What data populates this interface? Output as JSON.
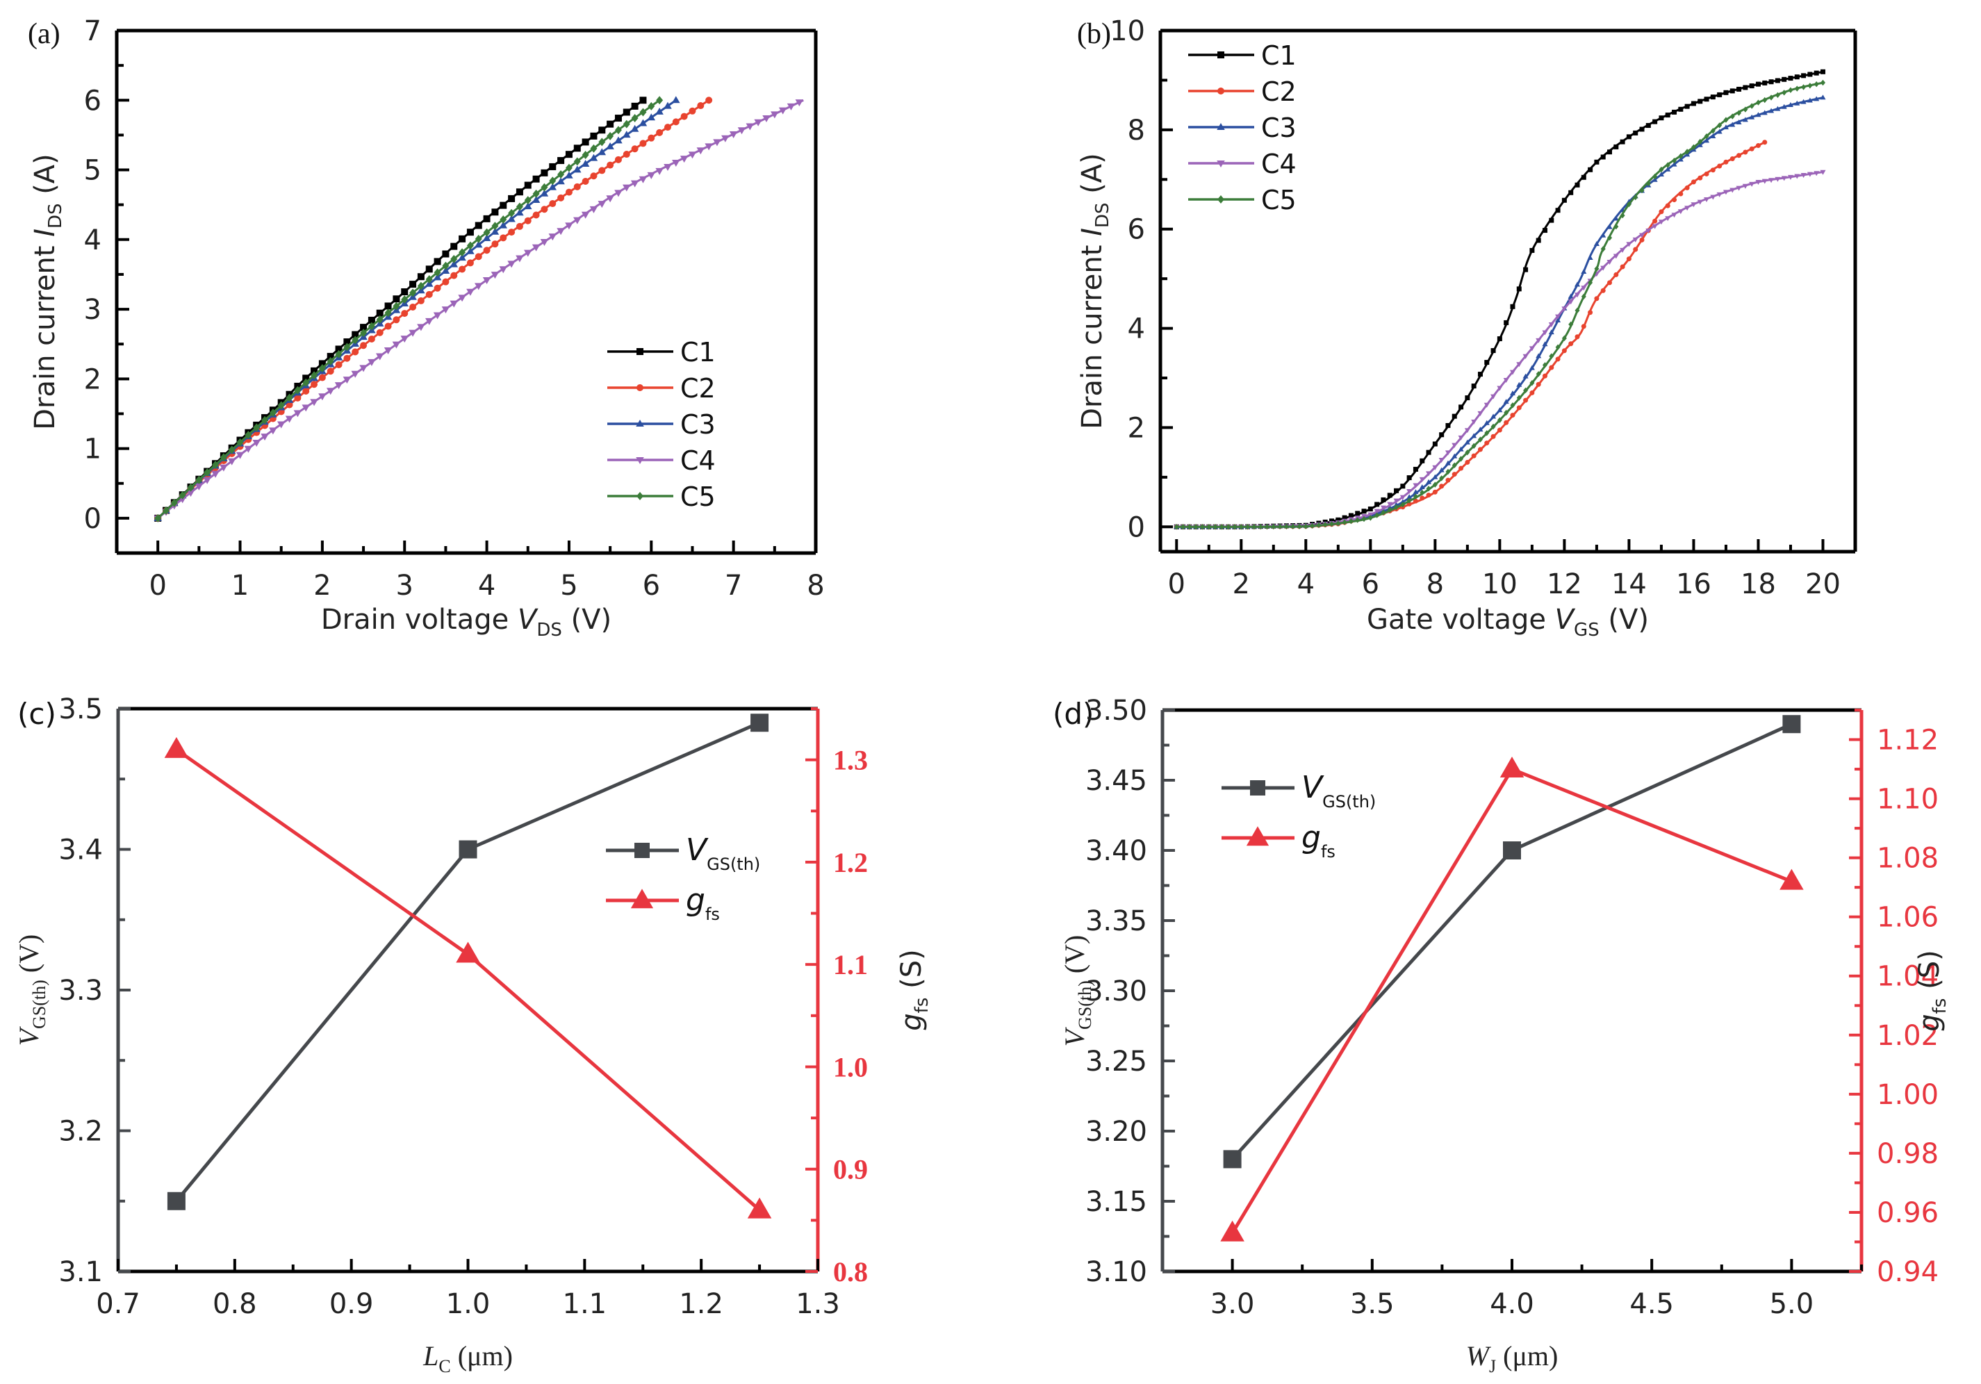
{
  "figure": {
    "panels": [
      "(a)",
      "(b)",
      "(c)",
      "(d)"
    ]
  },
  "chart_data": [
    {
      "id": "a",
      "panel_label": "(a)",
      "type": "line",
      "title": "",
      "xlabel": {
        "main": "Drain voltage ",
        "var": "V",
        "sub": "DS",
        "unit": " (V)"
      },
      "ylabel": {
        "main": "Drain current ",
        "var": "I",
        "sub": "DS",
        "unit": " (A)"
      },
      "xlim": [
        -0.5,
        8
      ],
      "ylim": [
        -0.5,
        7
      ],
      "xticks": [
        0,
        1,
        2,
        3,
        4,
        5,
        6,
        7,
        8
      ],
      "yticks": [
        0,
        1,
        2,
        3,
        4,
        5,
        6,
        7
      ],
      "x_minor_step": 0.5,
      "y_minor_step": 0.5,
      "grid": false,
      "legend_position": "bottom-right",
      "series": [
        {
          "name": "C1",
          "color": "#000000",
          "marker": "square",
          "x": [
            0,
            0.5,
            1.0,
            1.5,
            1.79,
            2.5,
            3.0,
            3.69,
            4.5,
            5.2,
            5.9
          ],
          "y": [
            0,
            0.56,
            1.12,
            1.66,
            2.0,
            2.74,
            3.25,
            4.0,
            4.78,
            5.4,
            6.0
          ]
        },
        {
          "name": "C2",
          "color": "#e8432e",
          "marker": "circle",
          "x": [
            0,
            0.5,
            1.0,
            1.5,
            1.98,
            2.5,
            3.0,
            4.17,
            5.0,
            5.9,
            6.7
          ],
          "y": [
            0,
            0.52,
            1.03,
            1.53,
            2.0,
            2.48,
            2.94,
            4.0,
            4.68,
            5.38,
            6.0
          ]
        },
        {
          "name": "C3",
          "color": "#2b4fa0",
          "marker": "triangle-up",
          "x": [
            0,
            0.5,
            1.0,
            1.5,
            1.89,
            2.5,
            3.0,
            3.98,
            4.8,
            5.6,
            6.3
          ],
          "y": [
            0,
            0.54,
            1.07,
            1.59,
            2.0,
            2.6,
            3.08,
            4.0,
            4.75,
            5.42,
            6.0
          ]
        },
        {
          "name": "C4",
          "color": "#9b64b8",
          "marker": "triangle-down",
          "x": [
            0,
            0.5,
            1.0,
            1.5,
            2.31,
            3.0,
            4.0,
            4.74,
            5.7,
            6.8,
            7.85
          ],
          "y": [
            0,
            0.46,
            0.91,
            1.35,
            2.0,
            2.58,
            3.42,
            4.0,
            4.75,
            5.4,
            6.0
          ]
        },
        {
          "name": "C5",
          "color": "#3c7d3a",
          "marker": "diamond",
          "x": [
            0,
            0.5,
            1.0,
            1.5,
            1.85,
            2.5,
            3.0,
            3.89,
            4.7,
            5.4,
            6.1
          ],
          "y": [
            0,
            0.55,
            1.09,
            1.62,
            2.0,
            2.66,
            3.14,
            4.0,
            4.75,
            5.4,
            6.0
          ]
        }
      ]
    },
    {
      "id": "b",
      "panel_label": "(b)",
      "type": "line",
      "title": "",
      "xlabel": {
        "main": "Gate voltage ",
        "var": "V",
        "sub": "GS",
        "unit": " (V)"
      },
      "ylabel": {
        "main": "Drain current ",
        "var": "I",
        "sub": "DS",
        "unit": " (A)"
      },
      "xlim": [
        -0.5,
        21
      ],
      "ylim": [
        -0.5,
        10
      ],
      "xticks": [
        0,
        2,
        4,
        6,
        8,
        10,
        12,
        14,
        16,
        18,
        20
      ],
      "yticks": [
        0,
        2,
        4,
        6,
        8,
        10
      ],
      "x_minor_step": 1,
      "y_minor_step": 1,
      "grid": false,
      "legend_position": "top-left",
      "series": [
        {
          "name": "C1",
          "color": "#000000",
          "marker": "square",
          "x": [
            0,
            2,
            4,
            5,
            6,
            7,
            8,
            9,
            10,
            10.5,
            11,
            12,
            13,
            14,
            15,
            16,
            17,
            18,
            19,
            20
          ],
          "y": [
            0,
            0,
            0.03,
            0.14,
            0.36,
            0.82,
            1.67,
            2.6,
            3.79,
            4.6,
            5.57,
            6.58,
            7.35,
            7.86,
            8.24,
            8.53,
            8.75,
            8.92,
            9.04,
            9.17
          ]
        },
        {
          "name": "C2",
          "color": "#e8432e",
          "marker": "circle",
          "x": [
            0,
            2,
            4,
            5,
            6,
            7,
            8,
            9,
            10,
            11,
            12,
            12.5,
            13,
            14,
            15,
            16,
            17,
            18.2
          ],
          "y": [
            0,
            0,
            0.01,
            0.06,
            0.2,
            0.4,
            0.7,
            1.3,
            1.95,
            2.7,
            3.55,
            3.9,
            4.6,
            5.4,
            6.35,
            6.95,
            7.35,
            7.75
          ]
        },
        {
          "name": "C3",
          "color": "#2b4fa0",
          "marker": "triangle-up",
          "x": [
            0,
            2,
            4,
            5,
            6,
            7,
            8,
            9,
            10,
            11,
            12,
            12.5,
            13,
            14,
            15,
            16,
            17,
            18,
            19,
            20
          ],
          "y": [
            0,
            0,
            0.02,
            0.08,
            0.22,
            0.5,
            1.0,
            1.7,
            2.35,
            3.2,
            4.4,
            5.0,
            5.7,
            6.55,
            7.1,
            7.6,
            8.05,
            8.3,
            8.5,
            8.65
          ]
        },
        {
          "name": "C4",
          "color": "#9b64b8",
          "marker": "triangle-down",
          "x": [
            0,
            2,
            4,
            5,
            6,
            7,
            8,
            9,
            10,
            11,
            12,
            13,
            14,
            15,
            16,
            17,
            18,
            19,
            20
          ],
          "y": [
            0,
            0,
            0.02,
            0.09,
            0.25,
            0.6,
            1.2,
            1.95,
            2.8,
            3.6,
            4.4,
            5.1,
            5.7,
            6.15,
            6.5,
            6.75,
            6.95,
            7.05,
            7.15
          ]
        },
        {
          "name": "C5",
          "color": "#3c7d3a",
          "marker": "diamond",
          "x": [
            0,
            2,
            4,
            5,
            6,
            7,
            8,
            9,
            10,
            11,
            12,
            12.5,
            13,
            13.2,
            14,
            15,
            16,
            17,
            18,
            19,
            20
          ],
          "y": [
            0,
            0,
            0.01,
            0.07,
            0.18,
            0.45,
            0.85,
            1.5,
            2.15,
            2.9,
            3.8,
            4.5,
            5.2,
            5.6,
            6.5,
            7.2,
            7.65,
            8.2,
            8.55,
            8.8,
            8.95
          ]
        }
      ]
    },
    {
      "id": "c",
      "panel_label": "(c)",
      "type": "line",
      "title": "",
      "xlabel": {
        "main": "",
        "var": "L",
        "sub": "C",
        "unit": " (μm)"
      },
      "ylabel": {
        "main": "",
        "var": "V",
        "sub": "GS(th)",
        "unit": " (V)"
      },
      "y2label": {
        "main": "",
        "var": "g",
        "sub": "fs",
        "unit": " (S)"
      },
      "xlim": [
        0.7,
        1.3
      ],
      "ylim": [
        3.1,
        3.5
      ],
      "y2lim": [
        0.8,
        1.35
      ],
      "xticks": [
        0.7,
        0.8,
        0.9,
        1.0,
        1.1,
        1.2,
        1.3
      ],
      "xtick_labels": [
        "0.7",
        "0.8",
        "0.9",
        "1.0",
        "1.1",
        "1.2",
        "1.3"
      ],
      "yticks": [
        3.1,
        3.2,
        3.3,
        3.4,
        3.5
      ],
      "ytick_labels": [
        "3.1",
        "3.2",
        "3.3",
        "3.4",
        "3.5"
      ],
      "y2ticks": [
        0.8,
        0.9,
        1.0,
        1.1,
        1.2,
        1.3
      ],
      "y2tick_labels": [
        "0.8",
        "0.9",
        "1.0",
        "1.1",
        "1.2",
        "1.3"
      ],
      "x_minor_step": 0.05,
      "y_minor_step": 0.05,
      "y2_minor_step": 0.05,
      "grid": false,
      "legend_position": "top-right",
      "series": [
        {
          "name": "V_GS(th)",
          "legend_var": "V",
          "legend_sub": "GS(th)",
          "axis": "left",
          "color": "#45484c",
          "marker": "square",
          "x": [
            0.75,
            1.0,
            1.25
          ],
          "y": [
            3.15,
            3.4,
            3.49
          ]
        },
        {
          "name": "g_fs",
          "legend_var": "g",
          "legend_sub": "fs",
          "axis": "right",
          "color": "#e8363f",
          "marker": "triangle-up",
          "x": [
            0.75,
            1.0,
            1.25
          ],
          "y": [
            1.31,
            1.11,
            0.86
          ]
        }
      ]
    },
    {
      "id": "d",
      "panel_label": "(d)",
      "type": "line",
      "title": "",
      "xlabel": {
        "main": "",
        "var": "W",
        "sub": "J",
        "unit": " (μm)"
      },
      "ylabel": {
        "main": "",
        "var": "V",
        "sub": "GS(th)",
        "unit": " (V)"
      },
      "y2label": {
        "main": "",
        "var": "g",
        "sub": "fs",
        "unit": " (S)"
      },
      "xlim": [
        2.75,
        5.25
      ],
      "ylim": [
        3.1,
        3.5
      ],
      "y2lim": [
        0.94,
        1.13
      ],
      "xticks": [
        3.0,
        3.5,
        4.0,
        4.5,
        5.0
      ],
      "xtick_labels": [
        "3.0",
        "3.5",
        "4.0",
        "4.5",
        "5.0"
      ],
      "yticks": [
        3.1,
        3.15,
        3.2,
        3.25,
        3.3,
        3.35,
        3.4,
        3.45,
        3.5
      ],
      "ytick_labels": [
        "3.10",
        "3.15",
        "3.20",
        "3.25",
        "3.30",
        "3.35",
        "3.40",
        "3.45",
        "3.50"
      ],
      "y2ticks": [
        0.94,
        0.96,
        0.98,
        1.0,
        1.02,
        1.04,
        1.06,
        1.08,
        1.1,
        1.12
      ],
      "y2tick_labels": [
        "0.94",
        "0.96",
        "0.98",
        "1.00",
        "1.02",
        "1.04",
        "1.06",
        "1.08",
        "1.10",
        "1.12"
      ],
      "x_minor_step": 0.25,
      "y_minor_step": 0.025,
      "y2_minor_step": 0.01,
      "grid": false,
      "legend_position": "top-left",
      "series": [
        {
          "name": "V_GS(th)",
          "legend_var": "V",
          "legend_sub": "GS(th)",
          "axis": "left",
          "color": "#45484c",
          "marker": "square",
          "x": [
            3.0,
            4.0,
            5.0
          ],
          "y": [
            3.18,
            3.4,
            3.49
          ]
        },
        {
          "name": "g_fs",
          "legend_var": "g",
          "legend_sub": "fs",
          "axis": "right",
          "color": "#e8363f",
          "marker": "triangle-up",
          "x": [
            3.0,
            4.0,
            5.0
          ],
          "y": [
            0.953,
            1.11,
            1.072
          ]
        }
      ]
    }
  ]
}
